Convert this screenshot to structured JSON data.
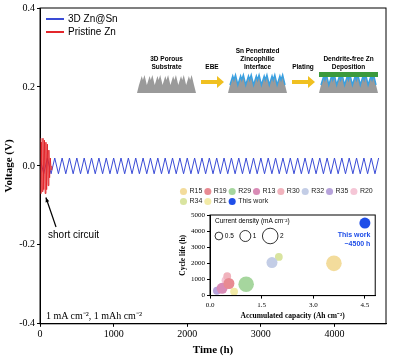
{
  "chart_data": [
    {
      "type": "line",
      "x_label": "Time (h)",
      "y_label": "Voltage (V)",
      "xlim": [
        0,
        4700
      ],
      "xticks": [
        0,
        1000,
        2000,
        3000,
        4000
      ],
      "ylim": [
        -0.4,
        0.4
      ],
      "yticks": [
        -0.4,
        -0.2,
        {
          "value": 0,
          "label": "0.0"
        },
        0.2,
        0.4
      ],
      "grid": false,
      "legend": "upper left",
      "series": [
        {
          "name": "3D Zn@Sn",
          "color": "#3a4bd6",
          "x": [
            0,
            50,
            100,
            150,
            200,
            250,
            300,
            350,
            400,
            450,
            500,
            550,
            600,
            650,
            700,
            750,
            800,
            850,
            900,
            950,
            1000,
            1050,
            1100,
            1150,
            1200,
            1250,
            1300,
            1350,
            1400,
            1450,
            1500,
            1550,
            1600,
            1650,
            1700,
            1750,
            1800,
            1850,
            1900,
            1950,
            2000,
            2050,
            2100,
            2150,
            2200,
            2250,
            2300,
            2350,
            2400,
            2450,
            2500,
            2550,
            2600,
            2650,
            2700,
            2750,
            2800,
            2850,
            2900,
            2950,
            3000,
            3050,
            3100,
            3150,
            3200,
            3250,
            3300,
            3350,
            3400,
            3450,
            3500,
            3550,
            3600,
            3650,
            3700,
            3750,
            3800,
            3850,
            3900,
            3950,
            4000,
            4050,
            4100,
            4150,
            4200,
            4250,
            4300,
            4350,
            4400,
            4450,
            4500,
            4550,
            4600
          ],
          "values": [
            0.02,
            -0.02,
            0.02,
            -0.02,
            0.02,
            -0.02,
            0.02,
            -0.02,
            0.02,
            -0.02,
            0.02,
            -0.02,
            0.02,
            -0.02,
            0.02,
            -0.02,
            0.02,
            -0.02,
            0.02,
            -0.02,
            0.02,
            -0.02,
            0.02,
            -0.02,
            0.02,
            -0.02,
            0.02,
            -0.02,
            0.02,
            -0.02,
            0.02,
            -0.02,
            0.02,
            -0.02,
            0.02,
            -0.02,
            0.02,
            -0.02,
            0.02,
            -0.02,
            0.02,
            -0.02,
            0.02,
            -0.02,
            0.02,
            -0.02,
            0.02,
            -0.02,
            0.02,
            -0.02,
            0.02,
            -0.02,
            0.02,
            -0.02,
            0.02,
            -0.02,
            0.02,
            -0.02,
            0.02,
            -0.02,
            0.02,
            -0.02,
            0.02,
            -0.02,
            0.02,
            -0.02,
            0.02,
            -0.02,
            0.02,
            -0.02,
            0.02,
            -0.02,
            0.02,
            -0.02,
            0.02,
            -0.02,
            0.02,
            -0.02,
            0.02,
            -0.02,
            0.02,
            -0.02,
            0.02,
            -0.02,
            0.02,
            -0.02,
            0.02,
            -0.02,
            0.02,
            -0.02,
            0.02,
            -0.02,
            0.02
          ]
        },
        {
          "name": "Pristine Zn",
          "color": "#e3262b",
          "x": [
            0,
            10,
            20,
            30,
            40,
            50,
            60,
            70,
            80,
            90,
            100,
            110,
            120,
            130,
            140,
            150,
            160
          ],
          "values": [
            0.07,
            -0.07,
            0.06,
            -0.065,
            0.07,
            -0.06,
            0.065,
            -0.07,
            0.06,
            -0.06,
            0.055,
            -0.05,
            0.04,
            -0.03,
            0.02,
            -0.01,
            0
          ]
        }
      ],
      "annotations": [
        {
          "text": "short circuit",
          "series": "Pristine Zn"
        },
        {
          "text": "1 mA cm⁻²,  1 mAh cm⁻²"
        }
      ]
    },
    {
      "type": "bubble",
      "x_label": "Accumulated capacity (Ah cm⁻²)",
      "y_label": "Cycle life (h)",
      "xlim": [
        0,
        4.8
      ],
      "xticks": [
        {
          "value": 0,
          "label": "0.0"
        },
        1.5,
        {
          "value": 3,
          "label": "3.0"
        },
        4.5
      ],
      "ylim": [
        0,
        5000
      ],
      "yticks": [
        0,
        1000,
        2000,
        3000,
        4000,
        5000
      ],
      "grid": false,
      "legend": "top",
      "series": [
        {
          "name": "R15",
          "color": "#f3dc9c",
          "x": [
            3.6
          ],
          "values": [
            2000
          ],
          "current_density": [
            2
          ]
        },
        {
          "name": "R19",
          "color": "#e88a92",
          "x": [
            0.55
          ],
          "values": [
            750
          ],
          "current_density": [
            1
          ]
        },
        {
          "name": "R29",
          "color": "#a6d69e",
          "x": [
            1.05
          ],
          "values": [
            700
          ],
          "current_density": [
            2
          ]
        },
        {
          "name": "R13",
          "color": "#d98bb6",
          "x": [
            0.35
          ],
          "values": [
            450
          ],
          "current_density": [
            1
          ]
        },
        {
          "name": "R30",
          "color": "#f1b3bd",
          "x": [
            0.5
          ],
          "values": [
            1200
          ],
          "current_density": [
            0.5
          ]
        },
        {
          "name": "R32",
          "color": "#c3cde6",
          "x": [
            1.8
          ],
          "values": [
            2050
          ],
          "current_density": [
            1
          ]
        },
        {
          "name": "R35",
          "color": "#b7a3db",
          "x": [
            0.2
          ],
          "values": [
            300
          ],
          "current_density": [
            0.5
          ]
        },
        {
          "name": "R20",
          "color": "#f5c6d6",
          "x": [
            0.45
          ],
          "values": [
            950
          ],
          "current_density": [
            0.5
          ]
        },
        {
          "name": "R34",
          "color": "#d9e4a0",
          "x": [
            2.0
          ],
          "values": [
            2400
          ],
          "current_density": [
            0.5
          ]
        },
        {
          "name": "R21",
          "color": "#f2eaa6",
          "x": [
            0.7
          ],
          "values": [
            250
          ],
          "current_density": [
            0.5
          ]
        },
        {
          "name": "This work",
          "color": "#1f4ee8",
          "x": [
            4.5
          ],
          "values": [
            4500
          ],
          "current_density": [
            1
          ]
        }
      ],
      "size_legend": {
        "title": "Current density (mA cm⁻²)",
        "values": [
          0.5,
          1,
          2
        ]
      },
      "annotations": [
        {
          "text": "This work",
          "series": "This work"
        },
        {
          "text": "~4500 h",
          "series": "This work"
        }
      ]
    }
  ],
  "schematic": {
    "steps": [
      "3D Porous Substrate",
      "Sn Penetrated Zincophilic Interface",
      "Dendrite-free Zn Deposition"
    ],
    "arrows": [
      "EBE",
      "Plating"
    ]
  }
}
